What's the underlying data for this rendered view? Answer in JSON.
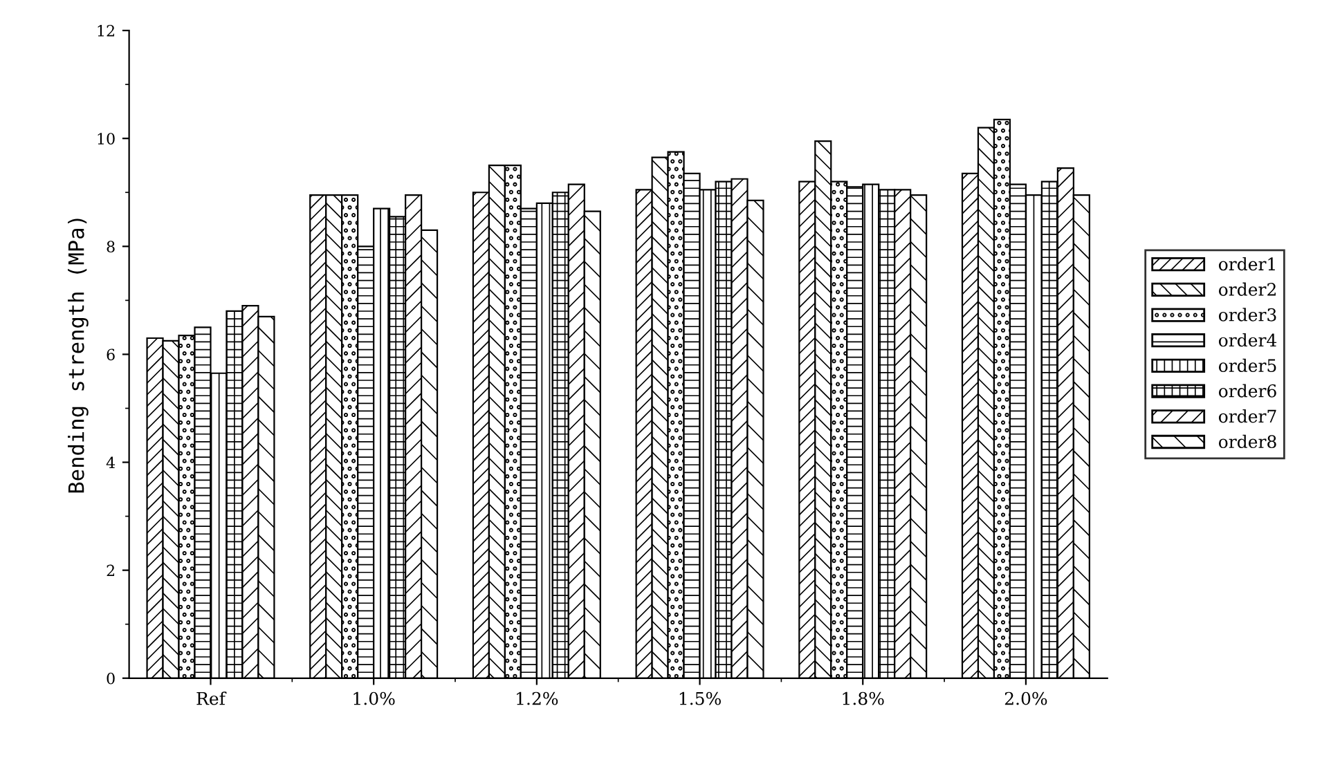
{
  "chart_data": {
    "type": "bar",
    "ylabel": "Bending strength (MPa)",
    "categories": [
      "Ref",
      "1.0%",
      "1.2%",
      "1.5%",
      "1.8%",
      "2.0%"
    ],
    "series": [
      {
        "name": "order1",
        "color": "#000000",
        "values": [
          6.3,
          8.95,
          9.0,
          9.05,
          9.2,
          9.35
        ]
      },
      {
        "name": "order2",
        "color": "#000000",
        "values": [
          6.25,
          8.95,
          9.5,
          9.65,
          9.95,
          10.2
        ]
      },
      {
        "name": "order3",
        "color": "#000000",
        "values": [
          6.35,
          8.95,
          9.5,
          9.75,
          9.2,
          10.35
        ]
      },
      {
        "name": "order4",
        "color": "#000000",
        "values": [
          6.5,
          8.0,
          8.7,
          9.35,
          9.1,
          9.15
        ]
      },
      {
        "name": "order5",
        "color": "#000000",
        "values": [
          5.65,
          8.7,
          8.8,
          9.05,
          9.15,
          8.95
        ]
      },
      {
        "name": "order6",
        "color": "#000000",
        "values": [
          6.8,
          8.55,
          9.0,
          9.2,
          9.05,
          9.2
        ]
      },
      {
        "name": "order7",
        "color": "#000000",
        "values": [
          6.9,
          8.95,
          9.15,
          9.25,
          9.05,
          9.45
        ]
      },
      {
        "name": "order8",
        "color": "#000000",
        "values": [
          6.7,
          8.3,
          8.65,
          8.85,
          8.95,
          8.95
        ]
      }
    ],
    "ylim": [
      0,
      12
    ],
    "yticks": [
      0,
      2,
      4,
      6,
      8,
      10,
      12
    ],
    "legend": "right",
    "grid": false
  }
}
